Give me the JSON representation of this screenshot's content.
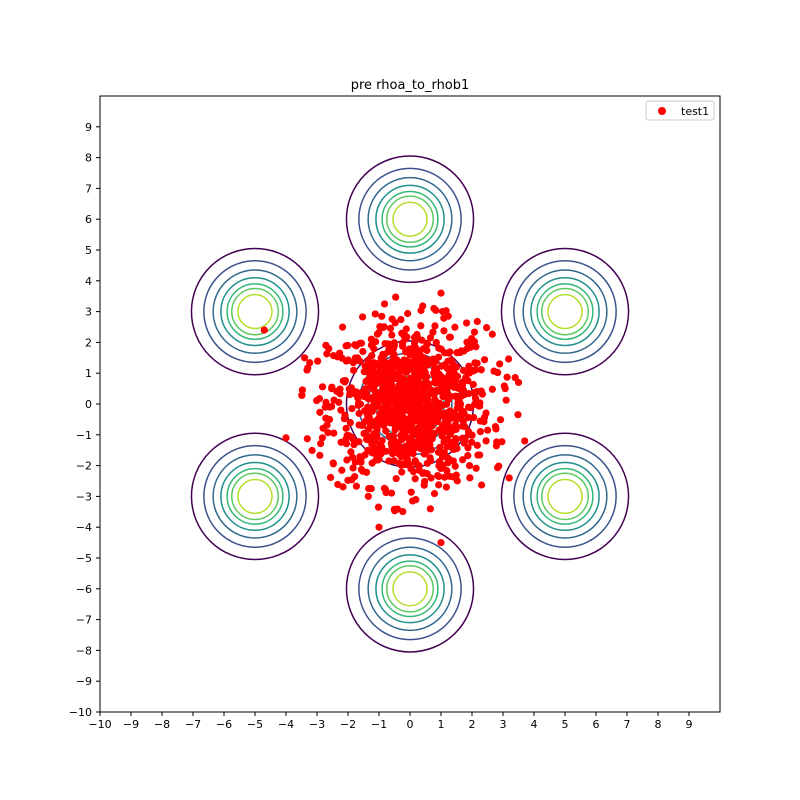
{
  "chart_data": {
    "type": "scatter",
    "title": "pre rhoa_to_rhob1",
    "xlabel": "",
    "ylabel": "",
    "xlim": [
      -10,
      10
    ],
    "ylim": [
      -10,
      10
    ],
    "xticks": [
      -10,
      -9,
      -8,
      -7,
      -6,
      -5,
      -4,
      -3,
      -2,
      -1,
      0,
      1,
      2,
      3,
      4,
      5,
      6,
      7,
      8,
      9
    ],
    "yticks": [
      -10,
      -9,
      -8,
      -7,
      -6,
      -5,
      -4,
      -3,
      -2,
      -1,
      0,
      1,
      2,
      3,
      4,
      5,
      6,
      7,
      8,
      9
    ],
    "grid": false,
    "legend": {
      "placement": "top-right",
      "entries": [
        {
          "label": "test1",
          "color": "#ff0000"
        }
      ]
    },
    "contours": {
      "centers": [
        [
          0,
          0
        ],
        [
          0,
          6
        ],
        [
          0,
          -6
        ],
        [
          5,
          3
        ],
        [
          5,
          -3
        ],
        [
          -5,
          3
        ],
        [
          -5,
          -3
        ]
      ],
      "radii": [
        2.05,
        1.65,
        1.35,
        1.1,
        0.9,
        0.75,
        0.55
      ],
      "colors": [
        "#440154",
        "#3b528b",
        "#31688e",
        "#21908d",
        "#35b779",
        "#5ec962",
        "#b5de2b"
      ]
    },
    "series": [
      {
        "name": "test1",
        "color": "#ff0000",
        "distribution": {
          "type": "gaussian-cloud",
          "center": [
            0,
            0
          ],
          "std": 1.3,
          "count": 1000
        },
        "outliers": [
          [
            -4.7,
            2.4
          ],
          [
            -4.0,
            -1.1
          ],
          [
            -1.0,
            -4.0
          ],
          [
            1.0,
            -4.5
          ],
          [
            3.2,
            -2.4
          ],
          [
            3.7,
            -1.2
          ],
          [
            3.5,
            0.7
          ],
          [
            1.0,
            3.6
          ],
          [
            -3.4,
            1.5
          ]
        ]
      }
    ]
  }
}
